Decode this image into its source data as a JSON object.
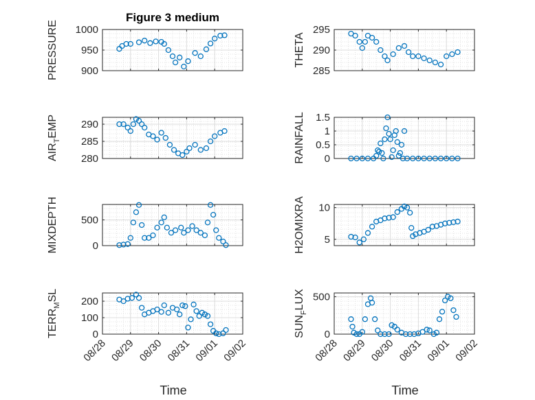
{
  "figure_title": "Figure 3 medium",
  "chart_data": [
    {
      "type": "scatter",
      "ylabel": "PRESSURE",
      "ylim": [
        900,
        1000
      ],
      "yticks": [
        "900",
        "950",
        "1000"
      ],
      "xlim": [
        0,
        5
      ],
      "xticks": [
        "08/28",
        "08/29",
        "08/30",
        "08/31",
        "09/01",
        "09/02"
      ],
      "show_xticklabels": false,
      "xlabel": "",
      "grid": "on",
      "color": "#0072BD",
      "points": [
        [
          0.6,
          953
        ],
        [
          0.7,
          960
        ],
        [
          0.85,
          965
        ],
        [
          1.0,
          965
        ],
        [
          1.3,
          969
        ],
        [
          1.5,
          973
        ],
        [
          1.7,
          967
        ],
        [
          1.9,
          971
        ],
        [
          2.1,
          970
        ],
        [
          2.2,
          965
        ],
        [
          2.35,
          950
        ],
        [
          2.5,
          935
        ],
        [
          2.6,
          920
        ],
        [
          2.75,
          932
        ],
        [
          2.9,
          910
        ],
        [
          3.05,
          923
        ],
        [
          3.3,
          943
        ],
        [
          3.5,
          935
        ],
        [
          3.7,
          952
        ],
        [
          3.85,
          966
        ],
        [
          4.0,
          978
        ],
        [
          4.2,
          985
        ],
        [
          4.35,
          986
        ]
      ]
    },
    {
      "type": "scatter",
      "ylabel": "THETA",
      "ylim": [
        285,
        295
      ],
      "yticks": [
        "285",
        "290",
        "295"
      ],
      "xlim": [
        0,
        5
      ],
      "xticks": [
        "08/28",
        "08/29",
        "08/30",
        "08/31",
        "09/01",
        "09/02"
      ],
      "show_xticklabels": false,
      "xlabel": "",
      "grid": "on",
      "color": "#0072BD",
      "points": [
        [
          0.6,
          294
        ],
        [
          0.75,
          293.5
        ],
        [
          0.9,
          292
        ],
        [
          1.0,
          290.5
        ],
        [
          1.1,
          292
        ],
        [
          1.2,
          293.5
        ],
        [
          1.35,
          293
        ],
        [
          1.5,
          292
        ],
        [
          1.65,
          290
        ],
        [
          1.8,
          288.5
        ],
        [
          1.9,
          287.5
        ],
        [
          2.1,
          289
        ],
        [
          2.3,
          290.5
        ],
        [
          2.5,
          291
        ],
        [
          2.65,
          289.5
        ],
        [
          2.8,
          288.5
        ],
        [
          3.0,
          288.5
        ],
        [
          3.2,
          288
        ],
        [
          3.4,
          287.5
        ],
        [
          3.6,
          287
        ],
        [
          3.8,
          286.5
        ],
        [
          4.0,
          288.5
        ],
        [
          4.2,
          289
        ],
        [
          4.4,
          289.5
        ]
      ]
    },
    {
      "type": "scatter",
      "ylabel": "AIR_TEMP",
      "ylim": [
        280,
        292
      ],
      "yticks": [
        "280",
        "285",
        "290"
      ],
      "xlim": [
        0,
        5
      ],
      "xticks": [
        "08/28",
        "08/29",
        "08/30",
        "08/31",
        "09/01",
        "09/02"
      ],
      "show_xticklabels": false,
      "xlabel": "",
      "grid": "on",
      "color": "#0072BD",
      "points": [
        [
          0.6,
          290
        ],
        [
          0.75,
          290
        ],
        [
          0.9,
          289
        ],
        [
          1.0,
          288
        ],
        [
          1.1,
          290
        ],
        [
          1.2,
          291.5
        ],
        [
          1.3,
          291
        ],
        [
          1.4,
          290
        ],
        [
          1.5,
          289
        ],
        [
          1.65,
          287
        ],
        [
          1.8,
          286.5
        ],
        [
          1.95,
          285.5
        ],
        [
          2.1,
          287.5
        ],
        [
          2.25,
          286
        ],
        [
          2.4,
          284
        ],
        [
          2.55,
          282.5
        ],
        [
          2.7,
          281.5
        ],
        [
          2.85,
          281
        ],
        [
          3.0,
          282
        ],
        [
          3.1,
          283
        ],
        [
          3.3,
          284
        ],
        [
          3.5,
          282.5
        ],
        [
          3.7,
          283
        ],
        [
          3.85,
          285
        ],
        [
          4.0,
          286.5
        ],
        [
          4.2,
          287.5
        ],
        [
          4.35,
          288
        ]
      ]
    },
    {
      "type": "scatter",
      "ylabel": "RAINFALL",
      "ylim": [
        0,
        1.5
      ],
      "yticks": [
        "0",
        "0.5",
        "1",
        "1.5"
      ],
      "xlim": [
        0,
        5
      ],
      "xticks": [
        "08/28",
        "08/29",
        "08/30",
        "08/31",
        "09/01",
        "09/02"
      ],
      "show_xticklabels": false,
      "xlabel": "",
      "grid": "on",
      "color": "#0072BD",
      "points": [
        [
          0.6,
          0
        ],
        [
          0.8,
          0
        ],
        [
          1.0,
          0
        ],
        [
          1.2,
          0
        ],
        [
          1.4,
          0
        ],
        [
          1.5,
          0.1
        ],
        [
          1.55,
          0.3
        ],
        [
          1.6,
          0.25
        ],
        [
          1.65,
          0.55
        ],
        [
          1.7,
          0.2
        ],
        [
          1.75,
          0
        ],
        [
          1.8,
          0.7
        ],
        [
          1.85,
          1.1
        ],
        [
          1.9,
          1.5
        ],
        [
          1.95,
          0.9
        ],
        [
          2.0,
          0.7
        ],
        [
          2.05,
          0.05
        ],
        [
          2.1,
          0.3
        ],
        [
          2.15,
          0.85
        ],
        [
          2.2,
          1.0
        ],
        [
          2.25,
          0.6
        ],
        [
          2.3,
          0.1
        ],
        [
          2.35,
          0.2
        ],
        [
          2.4,
          0.5
        ],
        [
          2.45,
          0
        ],
        [
          2.5,
          1.0
        ],
        [
          2.6,
          0
        ],
        [
          2.8,
          0
        ],
        [
          3.0,
          0
        ],
        [
          3.2,
          0
        ],
        [
          3.4,
          0
        ],
        [
          3.6,
          0
        ],
        [
          3.8,
          0
        ],
        [
          4.0,
          0
        ],
        [
          4.2,
          0
        ],
        [
          4.4,
          0
        ]
      ]
    },
    {
      "type": "scatter",
      "ylabel": "MIXDEPTH",
      "ylim": [
        0,
        800
      ],
      "yticks": [
        "0",
        "500"
      ],
      "xlim": [
        0,
        5
      ],
      "xticks": [
        "08/28",
        "08/29",
        "08/30",
        "08/31",
        "09/01",
        "09/02"
      ],
      "show_xticklabels": false,
      "xlabel": "",
      "grid": "on",
      "color": "#0072BD",
      "points": [
        [
          0.6,
          10
        ],
        [
          0.75,
          20
        ],
        [
          0.9,
          30
        ],
        [
          1.0,
          150
        ],
        [
          1.1,
          450
        ],
        [
          1.2,
          650
        ],
        [
          1.3,
          790
        ],
        [
          1.4,
          400
        ],
        [
          1.5,
          150
        ],
        [
          1.65,
          150
        ],
        [
          1.8,
          200
        ],
        [
          1.95,
          350
        ],
        [
          2.1,
          450
        ],
        [
          2.2,
          550
        ],
        [
          2.3,
          350
        ],
        [
          2.45,
          250
        ],
        [
          2.6,
          300
        ],
        [
          2.8,
          350
        ],
        [
          2.9,
          250
        ],
        [
          3.05,
          300
        ],
        [
          3.2,
          380
        ],
        [
          3.35,
          300
        ],
        [
          3.5,
          250
        ],
        [
          3.65,
          200
        ],
        [
          3.75,
          450
        ],
        [
          3.85,
          790
        ],
        [
          3.95,
          600
        ],
        [
          4.05,
          300
        ],
        [
          4.15,
          150
        ],
        [
          4.3,
          80
        ],
        [
          4.4,
          10
        ]
      ]
    },
    {
      "type": "scatter",
      "ylabel": "H2OMIXRA",
      "ylim": [
        4,
        10.5
      ],
      "yticks": [
        "5",
        "10"
      ],
      "xlim": [
        0,
        5
      ],
      "xticks": [
        "08/28",
        "08/29",
        "08/30",
        "08/31",
        "09/01",
        "09/02"
      ],
      "show_xticklabels": false,
      "xlabel": "",
      "grid": "on",
      "color": "#0072BD",
      "points": [
        [
          0.6,
          5.4
        ],
        [
          0.75,
          5.3
        ],
        [
          0.9,
          4.5
        ],
        [
          1.05,
          5
        ],
        [
          1.2,
          6
        ],
        [
          1.35,
          7
        ],
        [
          1.5,
          7.8
        ],
        [
          1.65,
          8
        ],
        [
          1.8,
          8.3
        ],
        [
          1.95,
          8.4
        ],
        [
          2.1,
          8.5
        ],
        [
          2.25,
          9.3
        ],
        [
          2.4,
          9.8
        ],
        [
          2.5,
          10.2
        ],
        [
          2.6,
          10
        ],
        [
          2.7,
          9.2
        ],
        [
          2.75,
          6.8
        ],
        [
          2.8,
          5.5
        ],
        [
          2.9,
          5.8
        ],
        [
          3.05,
          6
        ],
        [
          3.2,
          6.2
        ],
        [
          3.35,
          6.5
        ],
        [
          3.5,
          7
        ],
        [
          3.65,
          7.1
        ],
        [
          3.8,
          7.3
        ],
        [
          3.95,
          7.5
        ],
        [
          4.1,
          7.6
        ],
        [
          4.25,
          7.7
        ],
        [
          4.4,
          7.8
        ]
      ]
    },
    {
      "type": "scatter",
      "ylabel": "TERR_MSL",
      "ylim": [
        0,
        250
      ],
      "yticks": [
        "0",
        "100",
        "200"
      ],
      "xlim": [
        0,
        5
      ],
      "xticks": [
        "08/28",
        "08/29",
        "08/30",
        "08/31",
        "09/01",
        "09/02"
      ],
      "show_xticklabels": true,
      "xlabel": "Time",
      "grid": "on",
      "color": "#0072BD",
      "points": [
        [
          0.6,
          210
        ],
        [
          0.75,
          200
        ],
        [
          0.9,
          215
        ],
        [
          1.05,
          220
        ],
        [
          1.2,
          240
        ],
        [
          1.3,
          220
        ],
        [
          1.4,
          160
        ],
        [
          1.5,
          120
        ],
        [
          1.65,
          130
        ],
        [
          1.8,
          140
        ],
        [
          1.95,
          150
        ],
        [
          2.1,
          135
        ],
        [
          2.2,
          175
        ],
        [
          2.35,
          130
        ],
        [
          2.5,
          160
        ],
        [
          2.65,
          150
        ],
        [
          2.75,
          120
        ],
        [
          2.85,
          175
        ],
        [
          2.95,
          170
        ],
        [
          3.05,
          40
        ],
        [
          3.15,
          90
        ],
        [
          3.25,
          180
        ],
        [
          3.35,
          140
        ],
        [
          3.45,
          110
        ],
        [
          3.55,
          130
        ],
        [
          3.65,
          120
        ],
        [
          3.75,
          110
        ],
        [
          3.85,
          60
        ],
        [
          3.95,
          20
        ],
        [
          4.05,
          5
        ],
        [
          4.15,
          0
        ],
        [
          4.3,
          5
        ],
        [
          4.4,
          25
        ]
      ]
    },
    {
      "type": "scatter",
      "ylabel": "SUN_FLUX",
      "ylim": [
        0,
        550
      ],
      "yticks": [
        "0",
        "500"
      ],
      "xlim": [
        0,
        5
      ],
      "xticks": [
        "08/28",
        "08/29",
        "08/30",
        "08/31",
        "09/01",
        "09/02"
      ],
      "show_xticklabels": true,
      "xlabel": "Time",
      "grid": "on",
      "color": "#0072BD",
      "points": [
        [
          0.6,
          200
        ],
        [
          0.65,
          100
        ],
        [
          0.7,
          20
        ],
        [
          0.8,
          0
        ],
        [
          0.9,
          0
        ],
        [
          1.0,
          30
        ],
        [
          1.1,
          200
        ],
        [
          1.2,
          400
        ],
        [
          1.3,
          480
        ],
        [
          1.35,
          420
        ],
        [
          1.45,
          200
        ],
        [
          1.55,
          50
        ],
        [
          1.65,
          0
        ],
        [
          1.8,
          0
        ],
        [
          1.95,
          0
        ],
        [
          2.05,
          120
        ],
        [
          2.15,
          100
        ],
        [
          2.25,
          60
        ],
        [
          2.4,
          20
        ],
        [
          2.55,
          0
        ],
        [
          2.7,
          0
        ],
        [
          2.85,
          0
        ],
        [
          3.0,
          10
        ],
        [
          3.15,
          30
        ],
        [
          3.3,
          60
        ],
        [
          3.4,
          50
        ],
        [
          3.55,
          0
        ],
        [
          3.65,
          20
        ],
        [
          3.75,
          200
        ],
        [
          3.85,
          300
        ],
        [
          3.95,
          450
        ],
        [
          4.05,
          500
        ],
        [
          4.15,
          480
        ],
        [
          4.25,
          320
        ],
        [
          4.35,
          230
        ]
      ]
    }
  ]
}
